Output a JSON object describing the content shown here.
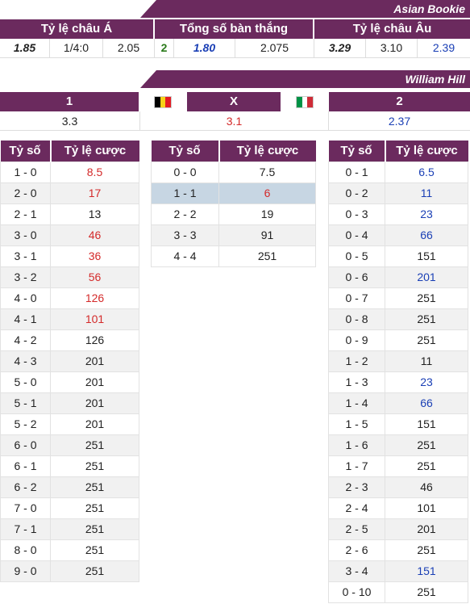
{
  "asian": {
    "bookie": "Asian Bookie",
    "headers": [
      "Tỷ lệ châu Á",
      "Tổng số bàn thắng",
      "Tỷ lệ châu Âu"
    ],
    "values": [
      "1.85",
      "1/4:0",
      "2.05",
      "2",
      "1.80",
      "2.075",
      "3.29",
      "3.10",
      "2.39"
    ]
  },
  "william": {
    "bookie": "William Hill",
    "labels": [
      "1",
      "X",
      "2"
    ],
    "values": [
      "3.3",
      "3.1",
      "2.37"
    ]
  },
  "table_header": {
    "score": "Tỷ số",
    "odds": "Tỷ lệ cược"
  },
  "home": [
    [
      "1 - 0",
      "8.5"
    ],
    [
      "2 - 0",
      "17"
    ],
    [
      "2 - 1",
      "13"
    ],
    [
      "3 - 0",
      "46"
    ],
    [
      "3 - 1",
      "36"
    ],
    [
      "3 - 2",
      "56"
    ],
    [
      "4 - 0",
      "126"
    ],
    [
      "4 - 1",
      "101"
    ],
    [
      "4 - 2",
      "126"
    ],
    [
      "4 - 3",
      "201"
    ],
    [
      "5 - 0",
      "201"
    ],
    [
      "5 - 1",
      "201"
    ],
    [
      "5 - 2",
      "201"
    ],
    [
      "6 - 0",
      "251"
    ],
    [
      "6 - 1",
      "251"
    ],
    [
      "6 - 2",
      "251"
    ],
    [
      "7 - 0",
      "251"
    ],
    [
      "7 - 1",
      "251"
    ],
    [
      "8 - 0",
      "251"
    ],
    [
      "9 - 0",
      "251"
    ]
  ],
  "draw": [
    [
      "0 - 0",
      "7.5"
    ],
    [
      "1 - 1",
      "6"
    ],
    [
      "2 - 2",
      "19"
    ],
    [
      "3 - 3",
      "91"
    ],
    [
      "4 - 4",
      "251"
    ]
  ],
  "away": [
    [
      "0 - 1",
      "6.5"
    ],
    [
      "0 - 2",
      "11"
    ],
    [
      "0 - 3",
      "23"
    ],
    [
      "0 - 4",
      "66"
    ],
    [
      "0 - 5",
      "151"
    ],
    [
      "0 - 6",
      "201"
    ],
    [
      "0 - 7",
      "251"
    ],
    [
      "0 - 8",
      "251"
    ],
    [
      "0 - 9",
      "251"
    ],
    [
      "1 - 2",
      "11"
    ],
    [
      "1 - 3",
      "23"
    ],
    [
      "1 - 4",
      "66"
    ],
    [
      "1 - 5",
      "151"
    ],
    [
      "1 - 6",
      "251"
    ],
    [
      "1 - 7",
      "251"
    ],
    [
      "2 - 3",
      "46"
    ],
    [
      "2 - 4",
      "101"
    ],
    [
      "2 - 5",
      "201"
    ],
    [
      "2 - 6",
      "251"
    ],
    [
      "3 - 4",
      "151"
    ],
    [
      "0 - 10",
      "251"
    ]
  ],
  "colors": {
    "header": "#6b2a5e",
    "red": "#d42a2a",
    "blue": "#1a3fb5",
    "highlight": "#c7d6e3"
  },
  "flags": [
    "belgium-flag",
    "italy-flag"
  ]
}
